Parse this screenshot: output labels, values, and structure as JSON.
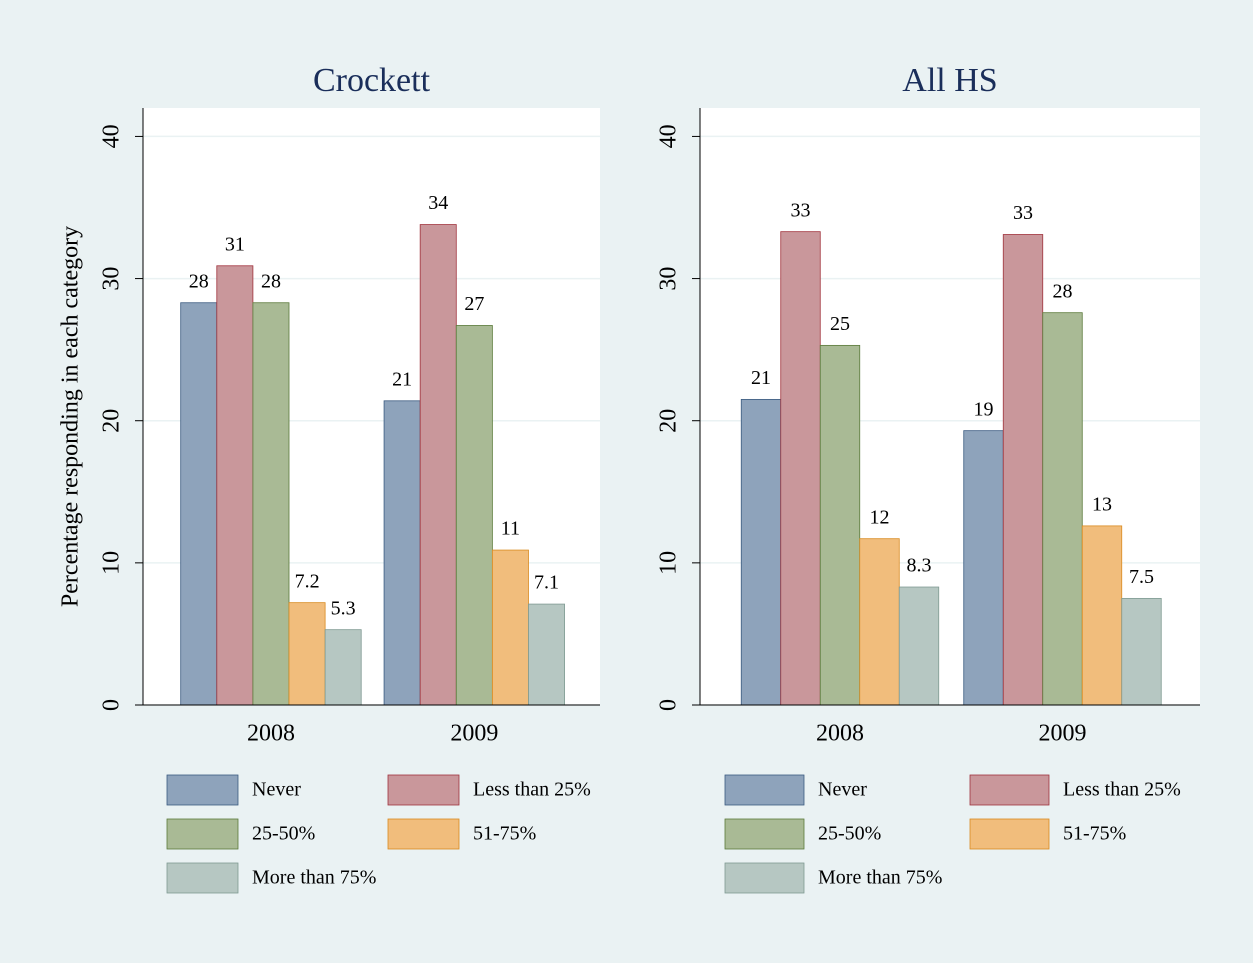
{
  "chart_data": [
    {
      "type": "bar",
      "title": "Crockett",
      "y_label": "Percentage responding in each category",
      "categories": [
        "2008",
        "2009"
      ],
      "ylim": [
        0,
        42
      ],
      "yticks": [
        0,
        10,
        20,
        30,
        40
      ],
      "grid": true,
      "series": [
        {
          "name": "Never",
          "color": "#8ea3bb",
          "values": [
            28.3,
            21.4
          ],
          "value_labels": [
            "28",
            "21"
          ]
        },
        {
          "name": "Less than 25%",
          "color": "#c9979b",
          "values": [
            30.9,
            33.8
          ],
          "value_labels": [
            "31",
            "34"
          ]
        },
        {
          "name": "25-50%",
          "color": "#a9ba95",
          "values": [
            28.3,
            26.7
          ],
          "value_labels": [
            "28",
            "27"
          ]
        },
        {
          "name": "51-75%",
          "color": "#f1bd7c",
          "values": [
            7.2,
            10.9
          ],
          "value_labels": [
            "7.2",
            "11"
          ]
        },
        {
          "name": "More than 75%",
          "color": "#b6c7c2",
          "values": [
            5.3,
            7.1
          ],
          "value_labels": [
            "5.3",
            "7.1"
          ]
        }
      ]
    },
    {
      "type": "bar",
      "title": "All HS",
      "categories": [
        "2008",
        "2009"
      ],
      "ylim": [
        0,
        42
      ],
      "yticks": [
        0,
        10,
        20,
        30,
        40
      ],
      "grid": true,
      "series": [
        {
          "name": "Never",
          "color": "#8ea3bb",
          "values": [
            21.5,
            19.3
          ],
          "value_labels": [
            "21",
            "19"
          ]
        },
        {
          "name": "Less than 25%",
          "color": "#c9979b",
          "values": [
            33.3,
            33.1
          ],
          "value_labels": [
            "33",
            "33"
          ]
        },
        {
          "name": "25-50%",
          "color": "#a9ba95",
          "values": [
            25.3,
            27.6
          ],
          "value_labels": [
            "25",
            "28"
          ]
        },
        {
          "name": "51-75%",
          "color": "#f1bd7c",
          "values": [
            11.7,
            12.6
          ],
          "value_labels": [
            "12",
            "13"
          ]
        },
        {
          "name": "More than 75%",
          "color": "#b6c7c2",
          "values": [
            8.3,
            7.5
          ],
          "value_labels": [
            "8.3",
            "7.5"
          ]
        }
      ]
    }
  ]
}
